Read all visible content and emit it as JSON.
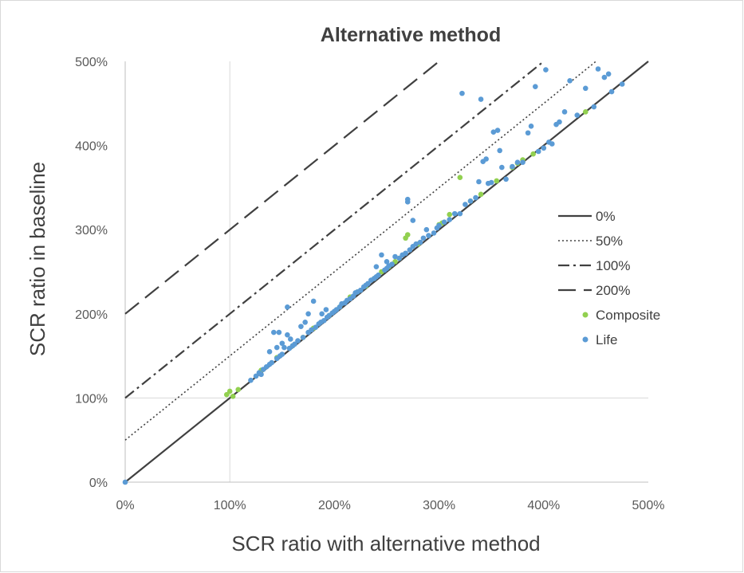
{
  "chart_data": {
    "type": "scatter",
    "title": "Alternative method",
    "xlabel": "SCR ratio with alternative method",
    "ylabel": "SCR ratio in baseline",
    "xlim": [
      0,
      500
    ],
    "ylim": [
      0,
      500
    ],
    "x_ticks": [
      "0%",
      "100%",
      "200%",
      "300%",
      "400%",
      "500%"
    ],
    "y_ticks": [
      "0%",
      "100%",
      "200%",
      "300%",
      "400%",
      "500%"
    ],
    "gridlines": {
      "x": [
        100
      ],
      "y": [
        100
      ]
    },
    "legend_position": "right",
    "lines": [
      {
        "name": "0%",
        "style": "solid",
        "intercept": 0,
        "color": "#404040"
      },
      {
        "name": "50%",
        "style": "dotted",
        "intercept": 50,
        "color": "#404040"
      },
      {
        "name": "100%",
        "style": "dash-dot",
        "intercept": 100,
        "color": "#404040"
      },
      {
        "name": "200%",
        "style": "dashed",
        "intercept": 200,
        "color": "#404040"
      }
    ],
    "series": [
      {
        "name": "Composite",
        "color": "#92d050",
        "points": [
          [
            97,
            104
          ],
          [
            100,
            108
          ],
          [
            103,
            102
          ],
          [
            108,
            110
          ],
          [
            130,
            133
          ],
          [
            145,
            148
          ],
          [
            160,
            162
          ],
          [
            170,
            172
          ],
          [
            180,
            183
          ],
          [
            195,
            198
          ],
          [
            205,
            208
          ],
          [
            215,
            220
          ],
          [
            222,
            226
          ],
          [
            230,
            233
          ],
          [
            238,
            242
          ],
          [
            245,
            250
          ],
          [
            252,
            256
          ],
          [
            258,
            262
          ],
          [
            262,
            266
          ],
          [
            268,
            290
          ],
          [
            270,
            294
          ],
          [
            280,
            283
          ],
          [
            300,
            306
          ],
          [
            303,
            308
          ],
          [
            310,
            318
          ],
          [
            320,
            362
          ],
          [
            330,
            334
          ],
          [
            340,
            342
          ],
          [
            355,
            358
          ],
          [
            370,
            374
          ],
          [
            375,
            379
          ],
          [
            380,
            383
          ],
          [
            390,
            390
          ],
          [
            440,
            440
          ]
        ]
      },
      {
        "name": "Life",
        "color": "#5b9bd5",
        "points": [
          [
            0,
            0
          ],
          [
            120,
            121
          ],
          [
            125,
            126
          ],
          [
            128,
            130
          ],
          [
            130,
            128
          ],
          [
            132,
            134
          ],
          [
            135,
            137
          ],
          [
            138,
            140
          ],
          [
            138,
            155
          ],
          [
            140,
            142
          ],
          [
            142,
            178
          ],
          [
            145,
            147
          ],
          [
            145,
            160
          ],
          [
            147,
            178
          ],
          [
            148,
            150
          ],
          [
            150,
            152
          ],
          [
            150,
            165
          ],
          [
            152,
            160
          ],
          [
            155,
            175
          ],
          [
            155,
            208
          ],
          [
            157,
            159
          ],
          [
            158,
            170
          ],
          [
            160,
            162
          ],
          [
            162,
            164
          ],
          [
            165,
            168
          ],
          [
            168,
            185
          ],
          [
            170,
            172
          ],
          [
            172,
            190
          ],
          [
            175,
            178
          ],
          [
            175,
            200
          ],
          [
            178,
            181
          ],
          [
            180,
            215
          ],
          [
            182,
            184
          ],
          [
            185,
            188
          ],
          [
            187,
            190
          ],
          [
            188,
            200
          ],
          [
            190,
            192
          ],
          [
            192,
            205
          ],
          [
            193,
            196
          ],
          [
            195,
            198
          ],
          [
            198,
            201
          ],
          [
            200,
            203
          ],
          [
            202,
            205
          ],
          [
            205,
            208
          ],
          [
            207,
            212
          ],
          [
            210,
            213
          ],
          [
            212,
            216
          ],
          [
            215,
            218
          ],
          [
            218,
            221
          ],
          [
            220,
            225
          ],
          [
            222,
            226
          ],
          [
            225,
            228
          ],
          [
            228,
            232
          ],
          [
            230,
            234
          ],
          [
            232,
            236
          ],
          [
            235,
            240
          ],
          [
            238,
            242
          ],
          [
            240,
            244
          ],
          [
            240,
            256
          ],
          [
            242,
            246
          ],
          [
            245,
            270
          ],
          [
            248,
            252
          ],
          [
            250,
            254
          ],
          [
            250,
            262
          ],
          [
            252,
            257
          ],
          [
            255,
            259
          ],
          [
            258,
            268
          ],
          [
            262,
            266
          ],
          [
            265,
            270
          ],
          [
            268,
            272
          ],
          [
            270,
            333
          ],
          [
            270,
            336
          ],
          [
            272,
            276
          ],
          [
            275,
            280
          ],
          [
            275,
            311
          ],
          [
            278,
            283
          ],
          [
            282,
            285
          ],
          [
            285,
            290
          ],
          [
            288,
            300
          ],
          [
            290,
            293
          ],
          [
            295,
            296
          ],
          [
            298,
            302
          ],
          [
            300,
            305
          ],
          [
            305,
            309
          ],
          [
            310,
            312
          ],
          [
            315,
            319
          ],
          [
            320,
            319
          ],
          [
            322,
            462
          ],
          [
            325,
            330
          ],
          [
            330,
            334
          ],
          [
            335,
            338
          ],
          [
            338,
            357
          ],
          [
            340,
            455
          ],
          [
            342,
            381
          ],
          [
            345,
            384
          ],
          [
            347,
            355
          ],
          [
            350,
            356
          ],
          [
            352,
            416
          ],
          [
            356,
            418
          ],
          [
            358,
            394
          ],
          [
            360,
            374
          ],
          [
            364,
            360
          ],
          [
            370,
            375
          ],
          [
            375,
            380
          ],
          [
            380,
            380
          ],
          [
            385,
            415
          ],
          [
            388,
            423
          ],
          [
            392,
            470
          ],
          [
            395,
            393
          ],
          [
            400,
            397
          ],
          [
            402,
            490
          ],
          [
            405,
            404
          ],
          [
            408,
            402
          ],
          [
            412,
            425
          ],
          [
            415,
            428
          ],
          [
            420,
            440
          ],
          [
            425,
            477
          ],
          [
            432,
            436
          ],
          [
            440,
            468
          ],
          [
            448,
            446
          ],
          [
            452,
            491
          ],
          [
            458,
            481
          ],
          [
            462,
            485
          ],
          [
            465,
            464
          ],
          [
            475,
            473
          ]
        ]
      }
    ]
  }
}
